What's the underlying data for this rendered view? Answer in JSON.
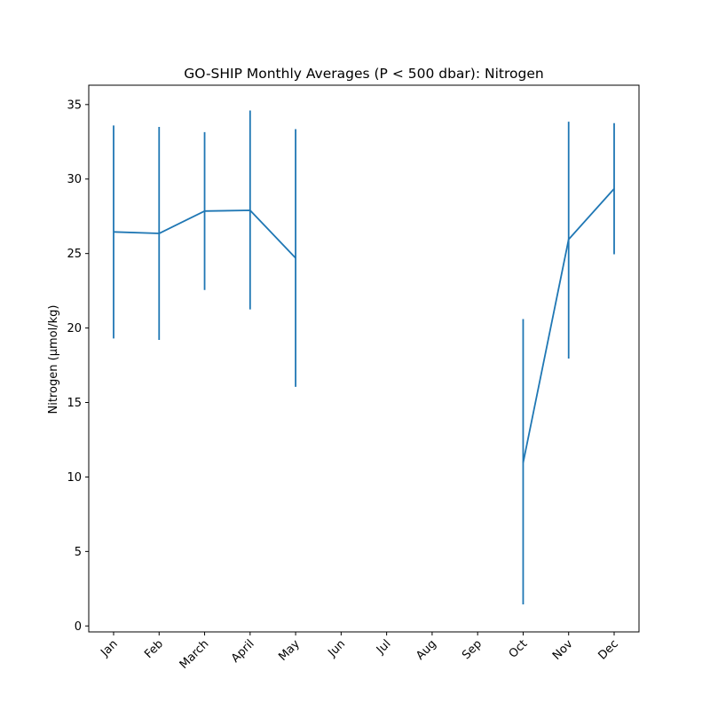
{
  "chart_data": {
    "type": "line",
    "title": "GO-SHIP Monthly Averages (P < 500 dbar): Nitrogen",
    "xlabel": "",
    "ylabel": "Nitrogen (μmol/kg)",
    "categories": [
      "Jan",
      "Feb",
      "March",
      "April",
      "May",
      "Jun",
      "Jul",
      "Aug",
      "Sep",
      "Oct",
      "Nov",
      "Dec"
    ],
    "yticks": [
      0,
      5,
      10,
      15,
      20,
      25,
      30,
      35
    ],
    "ylim": [
      -0.4,
      36.3
    ],
    "grid": false,
    "series": [
      {
        "color": "#1f77b4",
        "values": [
          26.45,
          26.35,
          27.85,
          27.9,
          24.7,
          null,
          null,
          null,
          null,
          10.95,
          25.95,
          29.35
        ],
        "error_low": [
          19.3,
          19.2,
          22.55,
          21.25,
          16.05,
          null,
          null,
          null,
          null,
          1.45,
          17.95,
          24.95
        ],
        "error_high": [
          33.6,
          33.5,
          33.15,
          34.6,
          33.35,
          null,
          null,
          null,
          null,
          20.6,
          33.85,
          33.75
        ]
      }
    ]
  }
}
